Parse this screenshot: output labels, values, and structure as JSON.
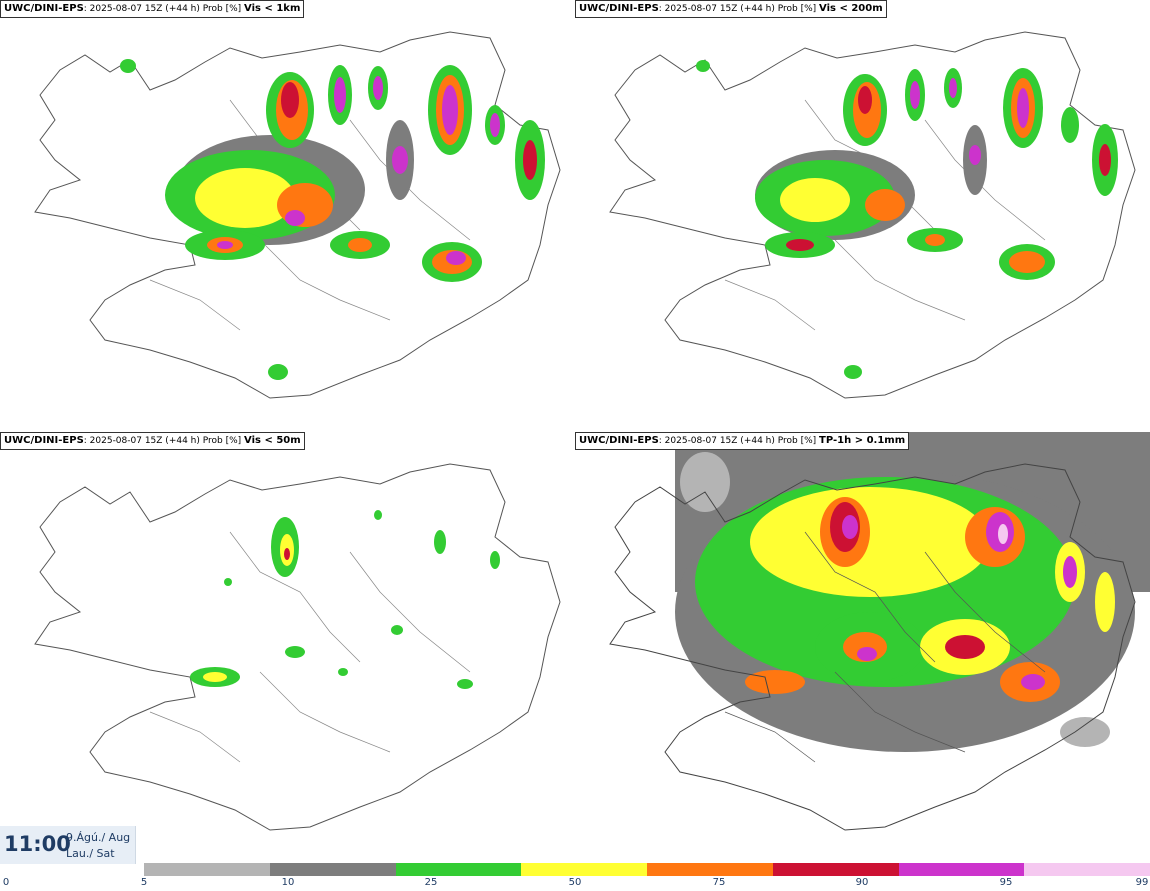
{
  "panels": [
    {
      "source": "UWC/DINI-EPS",
      "info": ": 2025-08-07 15Z (+44 h) Prob [%]",
      "variable": "Vis < 1km"
    },
    {
      "source": "UWC/DINI-EPS",
      "info": ": 2025-08-07 15Z (+44 h) Prob [%]",
      "variable": "Vis < 200m"
    },
    {
      "source": "UWC/DINI-EPS",
      "info": ": 2025-08-07 15Z (+44 h) Prob [%]",
      "variable": "Vis < 50m"
    },
    {
      "source": "UWC/DINI-EPS",
      "info": ": 2025-08-07 15Z (+44 h) Prob [%]",
      "variable": "TP-1h > 0.1mm"
    }
  ],
  "valid_time": {
    "time": "11:00",
    "date_line1": "9.Ágú./ Aug",
    "date_line2": "Lau./ Sat"
  },
  "legend": {
    "ticks": [
      "0",
      "5",
      "10",
      "25",
      "50",
      "75",
      "90",
      "95",
      "99"
    ],
    "colors": [
      "#b4b4b4",
      "#7d7d7d",
      "#33cc33",
      "#ffff33",
      "#ff7711",
      "#cc1133",
      "#cc33cc",
      "#f5c8f0"
    ]
  },
  "map_colors": {
    "outline": "#555555",
    "p5": "#b4b4b4",
    "p10": "#7d7d7d",
    "p25": "#33cc33",
    "p50": "#ffff33",
    "p75": "#ff7711",
    "p90": "#cc1133",
    "p95": "#cc33cc",
    "p99": "#f5c8f0"
  }
}
